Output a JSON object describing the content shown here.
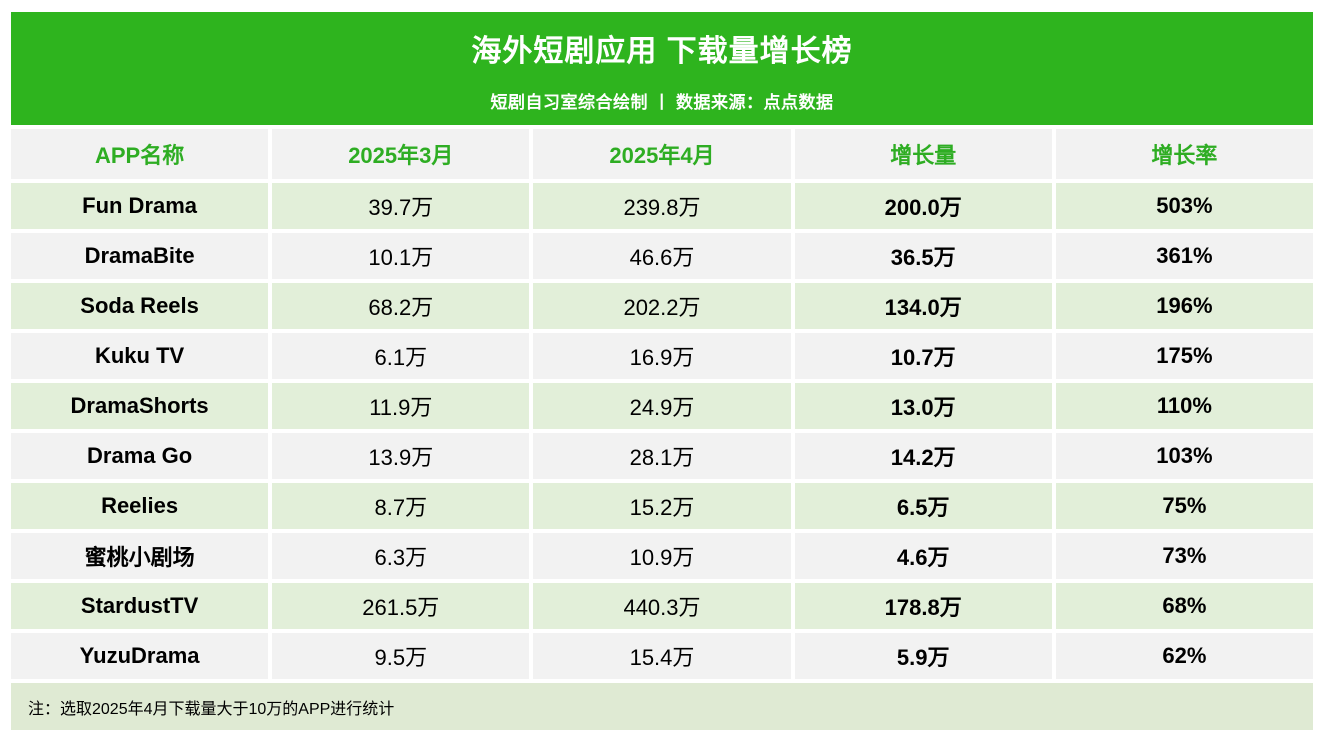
{
  "banner": {
    "title": "海外短剧应用 下载量增长榜",
    "subtitle": "短剧自习室综合绘制 丨 数据来源：点点数据"
  },
  "chart_data": {
    "type": "table",
    "title": "海外短剧应用 下载量增长榜",
    "subtitle": "短剧自习室综合绘制 丨 数据来源：点点数据",
    "columns": [
      "APP名称",
      "2025年3月",
      "2025年4月",
      "增长量",
      "增长率"
    ],
    "rows": [
      [
        "Fun Drama",
        "39.7万",
        "239.8万",
        "200.0万",
        "503%"
      ],
      [
        "DramaBite",
        "10.1万",
        "46.6万",
        "36.5万",
        "361%"
      ],
      [
        "Soda Reels",
        "68.2万",
        "202.2万",
        "134.0万",
        "196%"
      ],
      [
        "Kuku TV",
        "6.1万",
        "16.9万",
        "10.7万",
        "175%"
      ],
      [
        "DramaShorts",
        "11.9万",
        "24.9万",
        "13.0万",
        "110%"
      ],
      [
        "Drama Go",
        "13.9万",
        "28.1万",
        "14.2万",
        "103%"
      ],
      [
        "Reelies",
        "8.7万",
        "15.2万",
        "6.5万",
        "75%"
      ],
      [
        "蜜桃小剧场",
        "6.3万",
        "10.9万",
        "4.6万",
        "73%"
      ],
      [
        "StardustTV",
        "261.5万",
        "440.3万",
        "178.8万",
        "68%"
      ],
      [
        "YuzuDrama",
        "9.5万",
        "15.4万",
        "5.9万",
        "62%"
      ]
    ],
    "note": "注：选取2025年4月下载量大于10万的APP进行统计"
  },
  "colors": {
    "banner_green": "#2EB41E",
    "header_text_green": "#2EAD23",
    "row_green": "#E2EFD9",
    "row_gray": "#F2F2F2",
    "footnote_green": "#DFEAD3"
  }
}
